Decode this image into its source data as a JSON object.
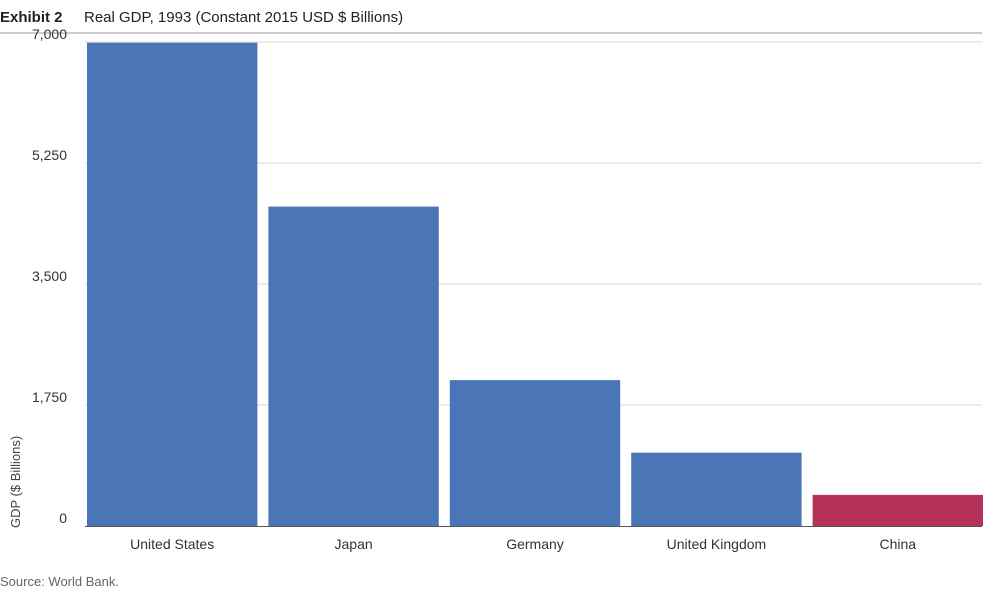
{
  "header": {
    "exhibit_label": "Exhibit 2",
    "title": "Real GDP, 1993 (Constant 2015 USD $ Billions)"
  },
  "footer": {
    "source": "Source: World Bank."
  },
  "colors": {
    "default_bar": "#4a76b8",
    "highlight_bar": "#b5325a",
    "gridline": "#d9d9d9",
    "axis": "#555555"
  },
  "chart_data": {
    "type": "bar",
    "title": "Real GDP, 1993 (Constant 2015 USD $ Billions)",
    "xlabel": "",
    "ylabel": "GDP ($ Billions)",
    "ylim": [
      0,
      7000
    ],
    "yticks": [
      0,
      1750,
      3500,
      5250,
      7000
    ],
    "ytick_labels": [
      "0",
      "1,750",
      "3,500",
      "5,250",
      "7,000"
    ],
    "grid": true,
    "categories": [
      "United States",
      "Japan",
      "Germany",
      "United Kingdom",
      "China"
    ],
    "values": [
      6990,
      4620,
      2110,
      1060,
      450
    ],
    "highlight": [
      "China"
    ]
  }
}
